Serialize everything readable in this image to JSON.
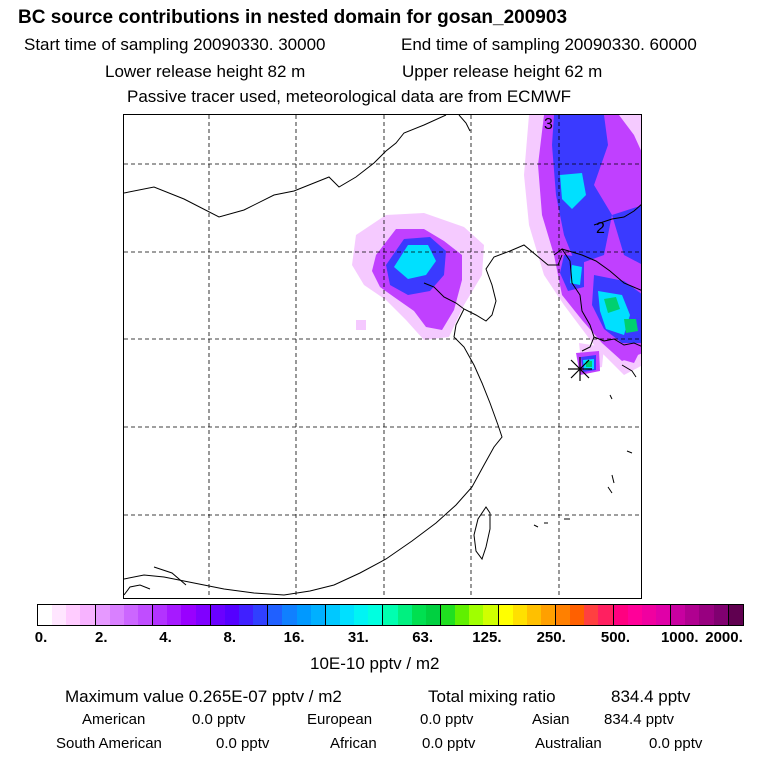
{
  "title": "BC  source contributions in nested domain for gosan_200903",
  "line2": {
    "start": "Start time of sampling 20090330. 30000",
    "end": "End time of sampling 20090330. 60000"
  },
  "line3": {
    "lower": "Lower release height   82 m",
    "upper": "Upper release height   62 m"
  },
  "line4": "Passive tracer used, meteorological data are from ECMWF",
  "map": {
    "contour_labels": [
      "3",
      "2"
    ],
    "receptor_marker": "star-marker"
  },
  "colorbar": {
    "tick_labels": [
      "0.",
      "2.",
      "4.",
      "8.",
      "16.",
      "31.",
      "63.",
      "125.",
      "250.",
      "500.",
      "1000.",
      "2000."
    ],
    "unit_label": "10E-10 pptv / m2",
    "colors": [
      "#ffffff",
      "#ffe6ff",
      "#ffccff",
      "#f7b3ff",
      "#e699ff",
      "#d980ff",
      "#cc66ff",
      "#c04dff",
      "#b333ff",
      "#a61aff",
      "#9900ff",
      "#8000ff",
      "#6a00ff",
      "#5500ff",
      "#4020ff",
      "#3040ff",
      "#2060ff",
      "#1080ff",
      "#0099ff",
      "#00b0ff",
      "#00c8ff",
      "#00e0ff",
      "#00f4f4",
      "#00ffe0",
      "#00ffb0",
      "#00f080",
      "#00e050",
      "#00d040",
      "#20e020",
      "#60f000",
      "#a0ff00",
      "#d0ff00",
      "#ffff00",
      "#ffe000",
      "#ffc000",
      "#ffa000",
      "#ff8000",
      "#ff6000",
      "#ff4040",
      "#ff2060",
      "#ff0080",
      "#ff0099",
      "#f000a0",
      "#e000a8",
      "#c800a0",
      "#b00090",
      "#980080",
      "#800070",
      "#600050"
    ]
  },
  "summary": {
    "max_label": "Maximum value  0.265E-07 pptv / m2",
    "total_label": "Total mixing ratio",
    "total_value": "834.4 pptv",
    "american_label": "American",
    "american_value": "0.0 pptv",
    "european_label": "European",
    "european_value": "0.0 pptv",
    "asian_label": "Asian",
    "asian_value": "834.4 pptv",
    "south_american_label": "South American",
    "south_american_value": "0.0 pptv",
    "african_label": "African",
    "african_value": "0.0 pptv",
    "australian_label": "Australian",
    "australian_value": "0.0 pptv"
  }
}
